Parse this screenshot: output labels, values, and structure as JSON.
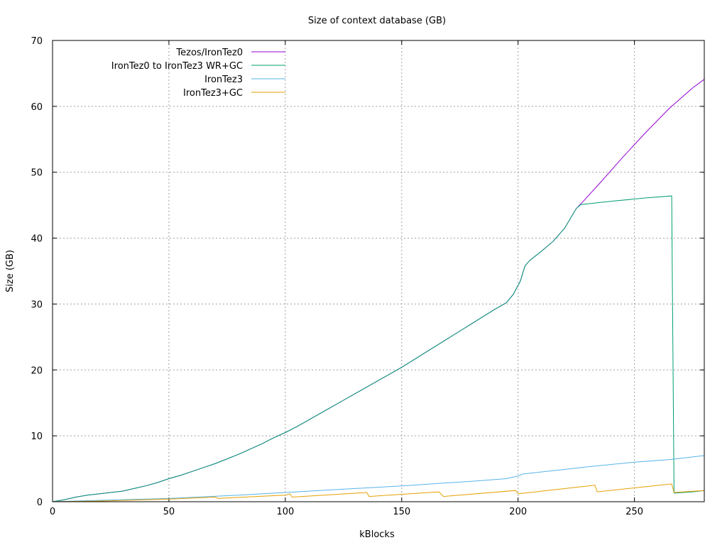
{
  "chart_data": {
    "type": "line",
    "title": "Size of context database (GB)",
    "xlabel": "kBlocks",
    "ylabel": "Size (GB)",
    "xlim": [
      0,
      280
    ],
    "ylim": [
      0,
      70
    ],
    "x_ticks": [
      0,
      50,
      100,
      150,
      200,
      250
    ],
    "y_ticks": [
      0,
      10,
      20,
      30,
      40,
      50,
      60,
      70
    ],
    "grid": true,
    "legend_position": "top-left",
    "series": [
      {
        "name": "Tezos/IronTez0",
        "color": "#9400d3",
        "points": [
          [
            0,
            0
          ],
          [
            5,
            0.3
          ],
          [
            10,
            0.7
          ],
          [
            15,
            1.0
          ],
          [
            20,
            1.2
          ],
          [
            25,
            1.4
          ],
          [
            30,
            1.6
          ],
          [
            35,
            2.0
          ],
          [
            40,
            2.4
          ],
          [
            45,
            2.9
          ],
          [
            50,
            3.5
          ],
          [
            55,
            4.0
          ],
          [
            60,
            4.6
          ],
          [
            65,
            5.2
          ],
          [
            70,
            5.8
          ],
          [
            75,
            6.5
          ],
          [
            80,
            7.2
          ],
          [
            85,
            8.0
          ],
          [
            90,
            8.8
          ],
          [
            95,
            9.7
          ],
          [
            100,
            10.5
          ],
          [
            105,
            11.4
          ],
          [
            110,
            12.4
          ],
          [
            115,
            13.4
          ],
          [
            120,
            14.4
          ],
          [
            125,
            15.4
          ],
          [
            130,
            16.4
          ],
          [
            135,
            17.4
          ],
          [
            140,
            18.4
          ],
          [
            145,
            19.4
          ],
          [
            150,
            20.4
          ],
          [
            155,
            21.5
          ],
          [
            160,
            22.6
          ],
          [
            165,
            23.7
          ],
          [
            170,
            24.8
          ],
          [
            175,
            25.9
          ],
          [
            180,
            27.0
          ],
          [
            185,
            28.1
          ],
          [
            190,
            29.2
          ],
          [
            195,
            30.2
          ],
          [
            198,
            31.5
          ],
          [
            201,
            33.5
          ],
          [
            203,
            35.8
          ],
          [
            205,
            36.6
          ],
          [
            210,
            38.0
          ],
          [
            215,
            39.5
          ],
          [
            220,
            41.5
          ],
          [
            225,
            44.5
          ],
          [
            227,
            45.2
          ],
          [
            235,
            48.3
          ],
          [
            245,
            52.3
          ],
          [
            255,
            56.1
          ],
          [
            265,
            59.7
          ],
          [
            275,
            62.8
          ],
          [
            280,
            64.1
          ]
        ]
      },
      {
        "name": "IronTez0 to IronTez3 WR+GC",
        "color": "#009e73",
        "points": [
          [
            0,
            0
          ],
          [
            5,
            0.3
          ],
          [
            10,
            0.7
          ],
          [
            15,
            1.0
          ],
          [
            20,
            1.2
          ],
          [
            25,
            1.4
          ],
          [
            30,
            1.6
          ],
          [
            35,
            2.0
          ],
          [
            40,
            2.4
          ],
          [
            45,
            2.9
          ],
          [
            50,
            3.5
          ],
          [
            55,
            4.0
          ],
          [
            60,
            4.6
          ],
          [
            65,
            5.2
          ],
          [
            70,
            5.8
          ],
          [
            75,
            6.5
          ],
          [
            80,
            7.2
          ],
          [
            85,
            8.0
          ],
          [
            90,
            8.8
          ],
          [
            95,
            9.7
          ],
          [
            100,
            10.5
          ],
          [
            105,
            11.4
          ],
          [
            110,
            12.4
          ],
          [
            115,
            13.4
          ],
          [
            120,
            14.4
          ],
          [
            125,
            15.4
          ],
          [
            130,
            16.4
          ],
          [
            135,
            17.4
          ],
          [
            140,
            18.4
          ],
          [
            145,
            19.4
          ],
          [
            150,
            20.4
          ],
          [
            155,
            21.5
          ],
          [
            160,
            22.6
          ],
          [
            165,
            23.7
          ],
          [
            170,
            24.8
          ],
          [
            175,
            25.9
          ],
          [
            180,
            27.0
          ],
          [
            185,
            28.1
          ],
          [
            190,
            29.2
          ],
          [
            195,
            30.2
          ],
          [
            198,
            31.5
          ],
          [
            201,
            33.5
          ],
          [
            203,
            35.8
          ],
          [
            205,
            36.6
          ],
          [
            210,
            38.0
          ],
          [
            215,
            39.5
          ],
          [
            220,
            41.5
          ],
          [
            225,
            44.5
          ],
          [
            227,
            45.1
          ],
          [
            240,
            45.6
          ],
          [
            255,
            46.1
          ],
          [
            266,
            46.4
          ],
          [
            267,
            1.3
          ],
          [
            275,
            1.5
          ],
          [
            280,
            1.7
          ]
        ]
      },
      {
        "name": "IronTez3",
        "color": "#56b4e9",
        "points": [
          [
            0,
            0
          ],
          [
            20,
            0.2
          ],
          [
            50,
            0.5
          ],
          [
            80,
            1.0
          ],
          [
            100,
            1.4
          ],
          [
            120,
            1.8
          ],
          [
            150,
            2.4
          ],
          [
            180,
            3.1
          ],
          [
            195,
            3.5
          ],
          [
            200,
            3.9
          ],
          [
            202,
            4.2
          ],
          [
            220,
            4.9
          ],
          [
            230,
            5.3
          ],
          [
            250,
            6.0
          ],
          [
            265,
            6.4
          ],
          [
            280,
            7.0
          ]
        ]
      },
      {
        "name": "IronTez3+GC",
        "color": "#e69f00",
        "points": [
          [
            0,
            0
          ],
          [
            20,
            0.1
          ],
          [
            50,
            0.4
          ],
          [
            70,
            0.7
          ],
          [
            71,
            0.5
          ],
          [
            100,
            1.0
          ],
          [
            102,
            1.2
          ],
          [
            103,
            0.7
          ],
          [
            135,
            1.4
          ],
          [
            136,
            0.8
          ],
          [
            166,
            1.5
          ],
          [
            168,
            0.8
          ],
          [
            199,
            1.7
          ],
          [
            200,
            1.2
          ],
          [
            225,
            2.2
          ],
          [
            233,
            2.5
          ],
          [
            234,
            1.5
          ],
          [
            266,
            2.7
          ],
          [
            267,
            1.4
          ],
          [
            280,
            1.7
          ]
        ]
      }
    ]
  }
}
